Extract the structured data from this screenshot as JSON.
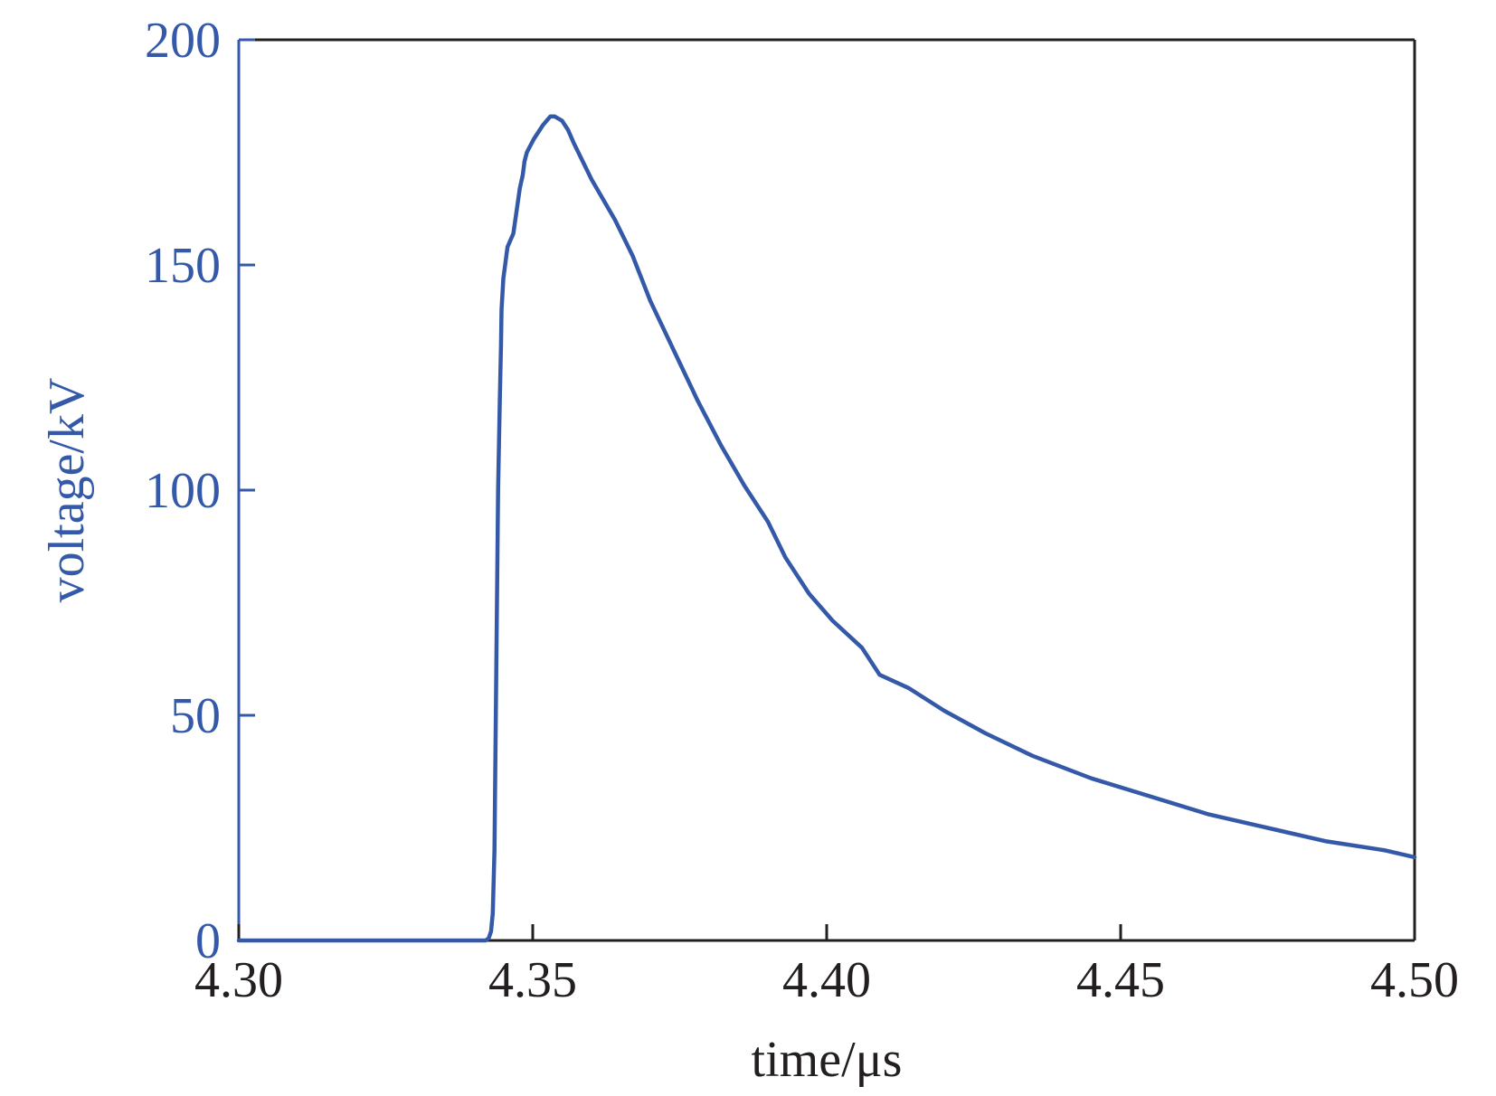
{
  "chart_data": {
    "type": "line",
    "xlabel": "time/μs",
    "ylabel": "voltage/kV",
    "xlim": [
      4.3,
      4.5
    ],
    "ylim": [
      0,
      200
    ],
    "x_ticks": [
      "4.30",
      "4.35",
      "4.40",
      "4.45",
      "4.50"
    ],
    "y_ticks": [
      "0",
      "50",
      "100",
      "150",
      "200"
    ],
    "grid": false,
    "colors": {
      "series": "#3459a8",
      "frame": "#231f20",
      "y_axis": "#3459a8"
    },
    "series": [
      {
        "x": [
          4.3,
          4.32,
          4.342,
          4.3425,
          4.3429,
          4.3432,
          4.3435,
          4.3438,
          4.3441,
          4.3444,
          4.3446,
          4.3447,
          4.345,
          4.3453,
          4.3457,
          4.3467,
          4.3478,
          4.3483,
          4.3486,
          4.349,
          4.3502,
          4.3517,
          4.353,
          4.3537,
          4.355,
          4.356,
          4.357,
          4.36,
          4.364,
          4.367,
          4.37,
          4.374,
          4.378,
          4.382,
          4.386,
          4.39,
          4.393,
          4.397,
          4.401,
          4.406,
          4.409,
          4.414,
          4.42,
          4.427,
          4.435,
          4.445,
          4.455,
          4.465,
          4.475,
          4.485,
          4.495,
          4.5
        ],
        "y": [
          0,
          0,
          0,
          0.5,
          2,
          6,
          20,
          60,
          100,
          120,
          132,
          140,
          147,
          150,
          154,
          157,
          167,
          170,
          173,
          175,
          178,
          181,
          183,
          183,
          182,
          180,
          177,
          169,
          160,
          152,
          142,
          131,
          120,
          110,
          101,
          93,
          85,
          77,
          71,
          65,
          59,
          56,
          51,
          46,
          41,
          36,
          32,
          28,
          25,
          22,
          20,
          18.5
        ]
      }
    ]
  }
}
